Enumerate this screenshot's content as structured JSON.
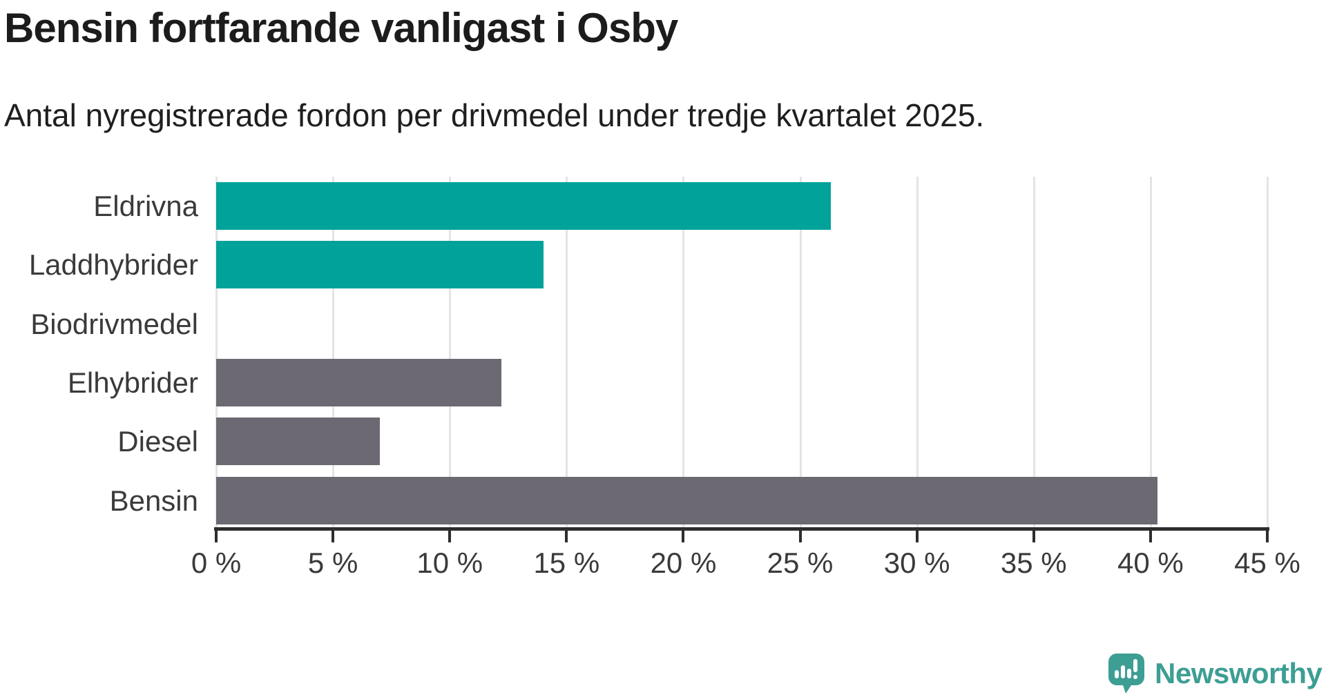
{
  "header": {
    "title": "Bensin fortfarande vanligast i Osby",
    "subtitle": "Antal nyregistrerade fordon per drivmedel under tredje kvartalet 2025."
  },
  "chart_data": {
    "type": "bar",
    "orientation": "horizontal",
    "title": "Bensin fortfarande vanligast i Osby",
    "subtitle": "Antal nyregistrerade fordon per drivmedel under tredje kvartalet 2025.",
    "categories": [
      "Eldrivna",
      "Laddhybrider",
      "Biodrivmedel",
      "Elhybrider",
      "Diesel",
      "Bensin"
    ],
    "values": [
      26.3,
      14.0,
      0.0,
      12.2,
      7.0,
      40.3
    ],
    "value_unit": "%",
    "bar_colors": [
      "#00a29a",
      "#00a29a",
      "#6c6973",
      "#6c6973",
      "#6c6973",
      "#6c6973"
    ],
    "xlim": [
      0,
      45
    ],
    "x_tick_values": [
      0,
      5,
      10,
      15,
      20,
      25,
      30,
      35,
      40,
      45
    ],
    "x_tick_labels": [
      "0 %",
      "5 %",
      "10 %",
      "15 %",
      "20 %",
      "25 %",
      "30 %",
      "35 %",
      "40 %",
      "45 %"
    ],
    "grid": true,
    "legend": "none"
  },
  "branding": {
    "logo_text": "Newsworthy",
    "logo_color": "#3d9e94"
  },
  "colors": {
    "highlight": "#00a29a",
    "neutral": "#6c6973",
    "grid": "#e4e4e4",
    "axis": "#2d2d2d",
    "title_text": "#1c1c1c",
    "label_text": "#3a3a3a"
  }
}
